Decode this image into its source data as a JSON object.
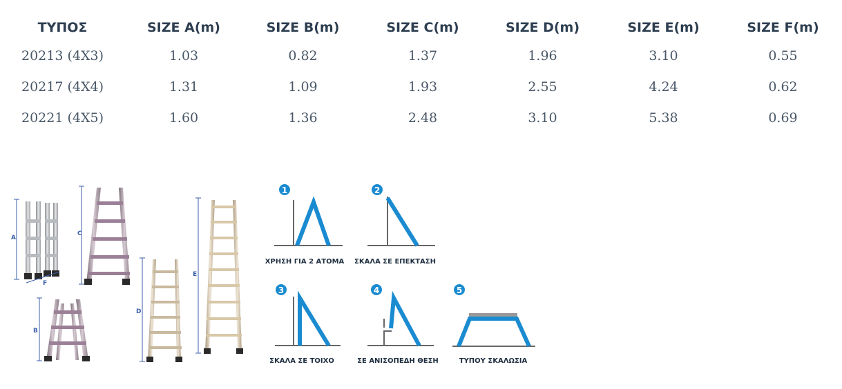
{
  "table": {
    "headers": [
      "ΤΥΠΟΣ",
      "SIZE A(m)",
      "SIZE B(m)",
      "SIZE C(m)",
      "SIZE D(m)",
      "SIZE E(m)",
      "SIZE F(m)"
    ],
    "rows": [
      [
        "20213 (4X3)",
        "1.03",
        "0.82",
        "1.37",
        "1.96",
        "3.10",
        "0.55"
      ],
      [
        "20217 (4X4)",
        "1.31",
        "1.09",
        "1.93",
        "2.55",
        "4.24",
        "0.62"
      ],
      [
        "20221 (4X5)",
        "1.60",
        "1.36",
        "2.48",
        "3.10",
        "5.38",
        "0.69"
      ]
    ]
  },
  "dimension_letters": [
    "A",
    "F",
    "B",
    "C",
    "D",
    "E"
  ],
  "usage_modes": [
    {
      "number": "1",
      "label": "ΧΡΗΣΗ ΓΙΑ 2 ΑΤΟΜΑ"
    },
    {
      "number": "2",
      "label": "ΣΚΑΛΑ ΣΕ ΕΠΕΚΤΑΣΗ"
    },
    {
      "number": "3",
      "label": "ΣΚΑΛΑ ΣΕ  ΤΟΙΧΟ"
    },
    {
      "number": "4",
      "label": "ΣΕ ΑΝΙΣΟΠΕΔΗ ΘΕΣΗ"
    },
    {
      "number": "5",
      "label": "ΤΥΠΟΥ ΣΚΑΛΩΣΙΑ"
    }
  ],
  "colors": {
    "accent_blue": "#1a8bd0",
    "frame_gray": "#555555",
    "header_text": "#2d3e50",
    "cell_text": "#4a5868"
  }
}
